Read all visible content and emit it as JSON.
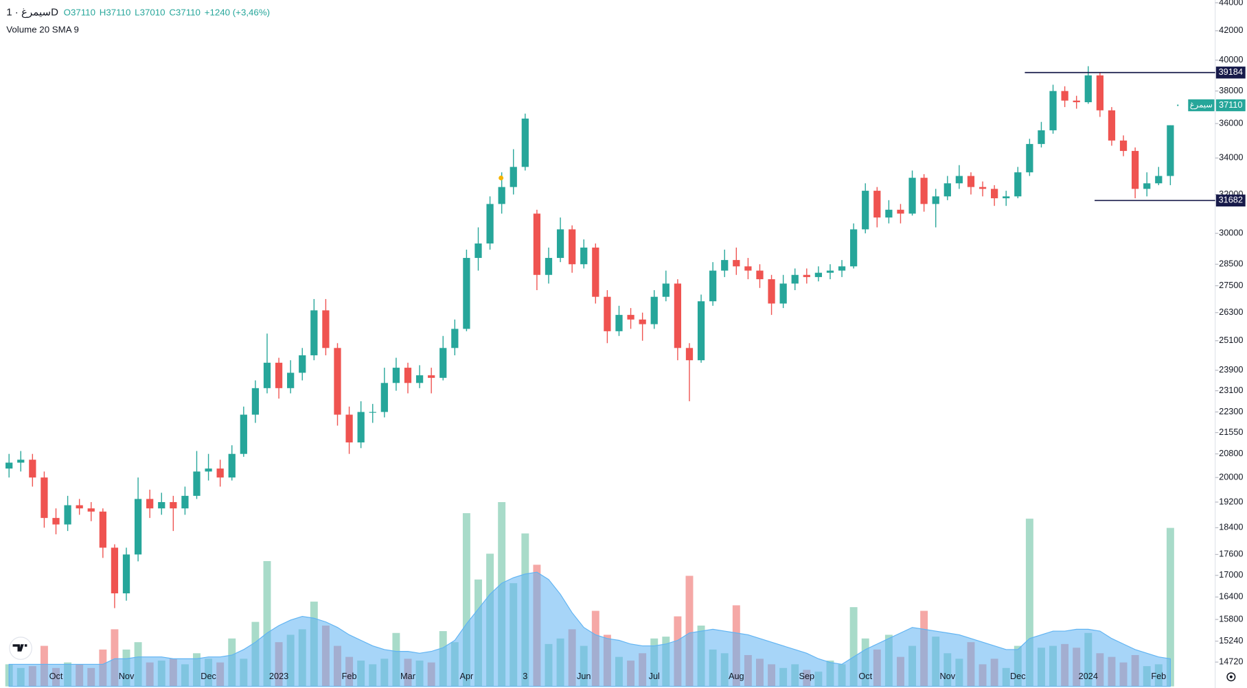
{
  "chart_data": {
    "type": "candlestick",
    "symbol_line": "سیمرغ · 1D",
    "ohlc": [
      "O37110",
      "H37110",
      "L37010",
      "C37110",
      "+1240 (+3,46%)"
    ],
    "indicator": "Volume 20 SMA 9",
    "log_scale": true,
    "grid": false,
    "colors": {
      "up": "#26a69a",
      "down": "#ef5350",
      "volume_up": "#a8dbc9",
      "volume_down": "#f5a8a6",
      "sma": "#5fb3f2",
      "level": "#171a4a"
    },
    "categories": [
      null,
      null,
      null,
      null,
      "Oct",
      null,
      null,
      null,
      null,
      null,
      "Nov",
      null,
      null,
      null,
      null,
      null,
      null,
      "Dec",
      null,
      null,
      null,
      null,
      null,
      "2023",
      null,
      null,
      null,
      null,
      null,
      "Feb",
      null,
      null,
      null,
      null,
      "Mar",
      null,
      null,
      null,
      null,
      "Apr",
      null,
      null,
      null,
      null,
      "3",
      null,
      null,
      null,
      null,
      "Jun",
      null,
      null,
      null,
      null,
      null,
      "Jul",
      null,
      null,
      null,
      null,
      null,
      null,
      "Aug",
      null,
      null,
      null,
      null,
      null,
      "Sep",
      null,
      null,
      null,
      null,
      "Oct",
      null,
      null,
      null,
      null,
      null,
      null,
      "Nov",
      null,
      null,
      null,
      null,
      null,
      "Dec",
      null,
      null,
      null,
      null,
      null,
      "2024",
      null,
      null,
      null,
      null,
      null,
      "Feb",
      null
    ],
    "open": [
      20300,
      20500,
      20600,
      20000,
      18700,
      18500,
      19100,
      19000,
      18900,
      17800,
      16500,
      17600,
      19300,
      19000,
      19200,
      19000,
      19400,
      20200,
      20300,
      20000,
      20800,
      22200,
      23200,
      24200,
      23200,
      23800,
      24500,
      26400,
      24800,
      22200,
      21200,
      22300,
      22300,
      23400,
      24000,
      23400,
      23700,
      23600,
      24800,
      25600,
      28800,
      29500,
      31500,
      32400,
      33500,
      31000,
      28000,
      28800,
      30200,
      28500,
      29300,
      27000,
      25500,
      26200,
      26000,
      25800,
      27000,
      27600,
      24800,
      24300,
      26800,
      28200,
      28700,
      28400,
      28200,
      27800,
      26700,
      27600,
      28000,
      27900,
      28100,
      28200,
      28400,
      30200,
      32200,
      30800,
      31200,
      31000,
      32900,
      31500,
      31900,
      32600,
      33000,
      32400,
      32300,
      31800,
      31900,
      33200,
      34800,
      35600,
      38000,
      37400,
      37300,
      39000,
      36800,
      35000,
      34400,
      32300,
      32600,
      33000
    ],
    "high": [
      20800,
      20900,
      20800,
      20200,
      19000,
      19400,
      19300,
      19200,
      19000,
      17900,
      17800,
      20000,
      19600,
      19500,
      19400,
      19700,
      20900,
      20800,
      20600,
      21100,
      22500,
      23500,
      25400,
      24400,
      24300,
      24800,
      26900,
      26900,
      25000,
      22500,
      22700,
      22600,
      24000,
      24400,
      24200,
      24100,
      24000,
      25300,
      26000,
      29200,
      30300,
      31900,
      33200,
      34500,
      36600,
      31200,
      29300,
      30800,
      30400,
      29700,
      29500,
      27300,
      26600,
      26500,
      26300,
      27300,
      28200,
      27800,
      25000,
      27100,
      28600,
      29200,
      29300,
      28800,
      28500,
      28000,
      28000,
      28300,
      28300,
      28400,
      28500,
      28700,
      30500,
      32600,
      32400,
      31700,
      31500,
      33300,
      33100,
      32300,
      33000,
      33600,
      33200,
      32700,
      32500,
      32200,
      33500,
      35100,
      36100,
      38400,
      38300,
      37700,
      39600,
      39200,
      37000,
      35300,
      34600,
      33200,
      33500,
      35900
    ],
    "low": [
      20000,
      20200,
      19700,
      18400,
      18200,
      18300,
      18800,
      18600,
      17500,
      16100,
      16300,
      17400,
      18700,
      18800,
      18300,
      18800,
      19300,
      19900,
      19700,
      19900,
      20700,
      21900,
      23000,
      22800,
      23000,
      23500,
      24300,
      24500,
      21800,
      20800,
      21000,
      21900,
      22100,
      23100,
      23000,
      23200,
      23000,
      23500,
      24500,
      25500,
      28200,
      29200,
      31000,
      32000,
      33300,
      27300,
      27600,
      28600,
      28100,
      28300,
      26700,
      25000,
      25300,
      25600,
      25100,
      25600,
      26800,
      24300,
      22700,
      24200,
      26600,
      27900,
      28000,
      27800,
      27400,
      26200,
      26500,
      27300,
      27600,
      27700,
      27800,
      27900,
      28300,
      30000,
      30300,
      30500,
      30500,
      30900,
      31100,
      30300,
      31700,
      32300,
      32000,
      31900,
      31400,
      31400,
      31800,
      33000,
      34600,
      35400,
      37000,
      36900,
      37200,
      36400,
      34700,
      34100,
      31800,
      31900,
      32500,
      32500
    ],
    "close": [
      20500,
      20600,
      20000,
      18700,
      18500,
      19100,
      19000,
      18900,
      17800,
      16500,
      17600,
      19300,
      19000,
      19200,
      19000,
      19400,
      20200,
      20300,
      20000,
      20800,
      22200,
      23200,
      24200,
      23200,
      23800,
      24500,
      26400,
      24800,
      22200,
      21200,
      22300,
      22300,
      23400,
      24000,
      23400,
      23700,
      23600,
      24800,
      25600,
      28800,
      29500,
      31500,
      32400,
      33500,
      36300,
      28000,
      28800,
      30200,
      28500,
      29300,
      27000,
      25500,
      26200,
      26000,
      25800,
      27000,
      27600,
      24800,
      24300,
      26800,
      28200,
      28700,
      28400,
      28200,
      27800,
      26700,
      27600,
      28000,
      27900,
      28100,
      28200,
      28400,
      30200,
      32200,
      30800,
      31200,
      31000,
      32900,
      31500,
      31900,
      32600,
      33000,
      32400,
      32300,
      31800,
      31900,
      33200,
      34800,
      35600,
      38000,
      37400,
      37300,
      39000,
      36800,
      35000,
      34400,
      32300,
      32600,
      33000,
      35900
    ],
    "volume": [
      1.2,
      1.0,
      1.1,
      2.2,
      1.0,
      1.3,
      1.2,
      1.0,
      2.0,
      3.1,
      2.0,
      2.4,
      1.3,
      1.4,
      1.5,
      1.2,
      1.8,
      1.5,
      1.3,
      2.6,
      1.5,
      3.5,
      6.8,
      2.4,
      2.8,
      3.1,
      4.6,
      3.3,
      2.2,
      1.6,
      1.4,
      1.2,
      1.5,
      2.9,
      1.5,
      1.4,
      1.3,
      3.0,
      2.4,
      9.4,
      5.8,
      7.2,
      10.0,
      5.6,
      8.3,
      6.6,
      2.3,
      2.6,
      3.1,
      2.2,
      4.1,
      2.8,
      1.6,
      1.4,
      1.8,
      2.6,
      2.7,
      3.8,
      6.0,
      3.3,
      2.0,
      1.8,
      4.4,
      1.7,
      1.5,
      1.2,
      1.0,
      1.2,
      0.9,
      0.8,
      1.4,
      1.2,
      4.3,
      2.6,
      2.0,
      2.8,
      1.6,
      2.2,
      4.1,
      2.7,
      1.8,
      1.5,
      2.4,
      1.2,
      1.5,
      1.0,
      2.2,
      9.1,
      2.1,
      2.2,
      2.3,
      2.1,
      2.9,
      1.8,
      1.6,
      1.3,
      1.7,
      1.1,
      1.2,
      8.6
    ],
    "volume_sma": [
      1.2,
      1.2,
      1.2,
      1.2,
      1.2,
      1.2,
      1.2,
      1.2,
      1.2,
      1.5,
      1.5,
      1.6,
      1.6,
      1.6,
      1.5,
      1.5,
      1.5,
      1.6,
      1.6,
      1.7,
      2.0,
      2.4,
      2.9,
      3.3,
      3.6,
      3.8,
      3.7,
      3.5,
      3.2,
      2.8,
      2.5,
      2.2,
      2.0,
      1.9,
      1.9,
      1.8,
      1.9,
      2.1,
      2.5,
      3.4,
      4.2,
      5.0,
      5.6,
      5.9,
      6.1,
      6.2,
      5.8,
      5.0,
      4.0,
      3.2,
      2.8,
      2.6,
      2.5,
      2.3,
      2.2,
      2.2,
      2.3,
      2.5,
      2.9,
      3.0,
      3.1,
      3.0,
      2.9,
      2.8,
      2.6,
      2.4,
      2.2,
      2.0,
      1.8,
      1.5,
      1.3,
      1.2,
      1.6,
      2.0,
      2.3,
      2.6,
      2.9,
      3.2,
      3.1,
      3.0,
      2.9,
      2.8,
      2.6,
      2.4,
      2.2,
      2.0,
      2.0,
      2.6,
      2.8,
      3.0,
      3.0,
      3.1,
      3.1,
      3.0,
      2.6,
      2.3,
      2.0,
      1.8,
      1.6,
      1.5
    ],
    "volume_ylim": [
      0,
      10
    ],
    "ylim": [
      14100,
      44200
    ],
    "yticks": [
      44000,
      42000,
      40000,
      38000,
      36000,
      34000,
      32000,
      30000,
      28500,
      27500,
      26300,
      25100,
      23900,
      23100,
      22300,
      21550,
      20800,
      20000,
      19200,
      18400,
      17600,
      17000,
      16400,
      15800,
      15240,
      14720
    ],
    "levels": [
      39184,
      31682
    ],
    "last_price": 37110,
    "last_label": "سیمرغ"
  }
}
